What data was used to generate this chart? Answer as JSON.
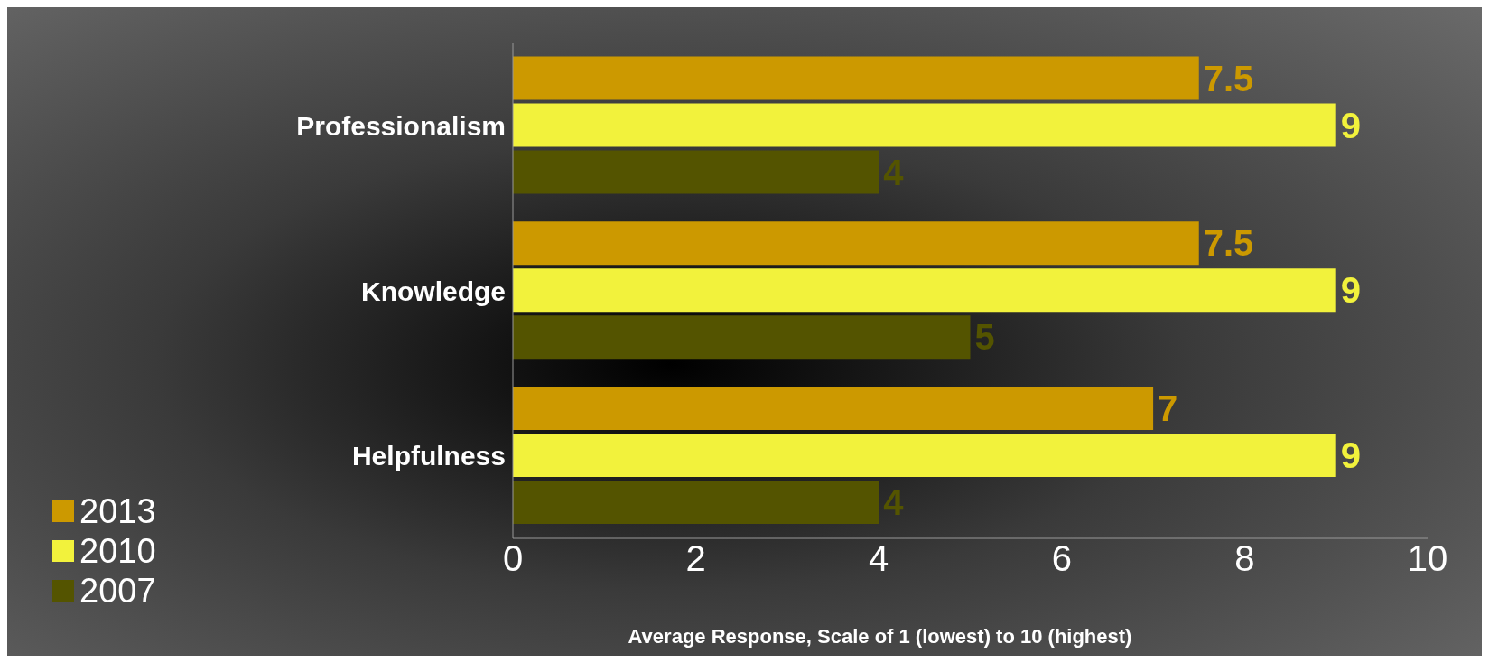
{
  "chart_data": {
    "type": "bar",
    "orientation": "horizontal",
    "categories": [
      "Professionalism",
      "Knowledge",
      "Helpfulness"
    ],
    "series": [
      {
        "name": "2013",
        "color": "#cc9900",
        "values": [
          7.5,
          7.5,
          7
        ]
      },
      {
        "name": "2010",
        "color": "#f2f23c",
        "values": [
          9,
          9,
          9
        ]
      },
      {
        "name": "2007",
        "color": "#545400",
        "values": [
          4,
          5,
          4
        ]
      }
    ],
    "xlim": [
      0,
      10
    ],
    "xticks": [
      0,
      2,
      4,
      6,
      8,
      10
    ],
    "xlabel": "Average Response, Scale of 1 (lowest) to 10 (highest)",
    "data_labels": true,
    "legend": "bottom left",
    "grid": false
  }
}
